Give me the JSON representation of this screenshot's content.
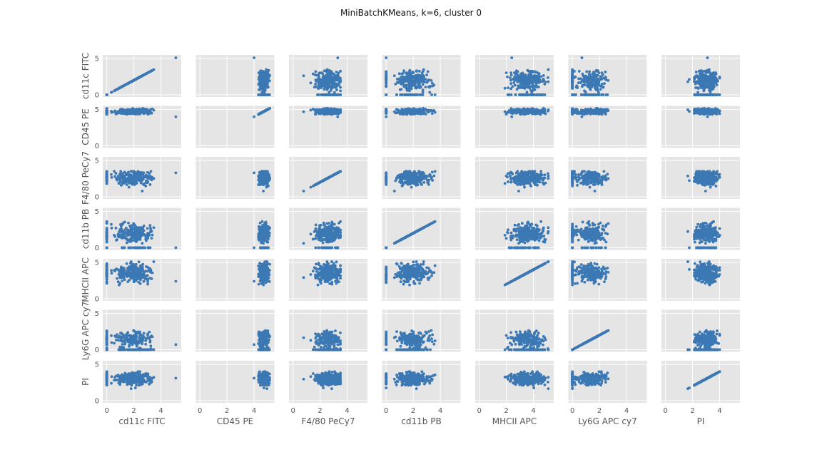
{
  "title": "MiniBatchKMeans, k=6, cluster 0",
  "chart_data": {
    "type": "scatter",
    "layout": "scatter-matrix",
    "variables": [
      "cd11c FITC",
      "CD45 PE",
      "F4/80 PeCy7",
      "cd11b PB",
      "MHCII APC",
      "Ly6G APC cy7",
      "PI"
    ],
    "x_axis_ticks": [
      0,
      2,
      4
    ],
    "y_axis_ticks": [
      0,
      5
    ],
    "grid": true,
    "style": "ggplot",
    "marker_color": "#3b78b4",
    "panel_background": "#e5e5e5",
    "ranges": {
      "cd11c FITC": {
        "lim": [
          -0.3,
          5.5
        ],
        "bulk": [
          0.0,
          3.6
        ],
        "outlier": 5.1
      },
      "CD45 PE": {
        "lim": [
          -0.3,
          5.5
        ],
        "bulk": [
          4.1,
          5.2
        ],
        "outlier": 4.0
      },
      "F4/80 PeCy7": {
        "lim": [
          -0.3,
          5.5
        ],
        "bulk": [
          0.7,
          3.5
        ],
        "outlier": 3.3
      },
      "cd11b PB": {
        "lim": [
          -0.3,
          5.5
        ],
        "bulk": [
          0.0,
          4.4
        ],
        "outlier": 0.0
      },
      "MHCII APC": {
        "lim": [
          -0.3,
          5.5
        ],
        "bulk": [
          1.5,
          5.1
        ],
        "outlier": 2.4
      },
      "Ly6G APC cy7": {
        "lim": [
          -0.3,
          5.5
        ],
        "bulk": [
          0.0,
          2.8
        ],
        "outlier": 0.7
      },
      "PI": {
        "lim": [
          -0.3,
          5.5
        ],
        "bulk": [
          1.4,
          4.0
        ],
        "outlier": 3.1
      }
    },
    "approx_points_per_panel": 300
  }
}
